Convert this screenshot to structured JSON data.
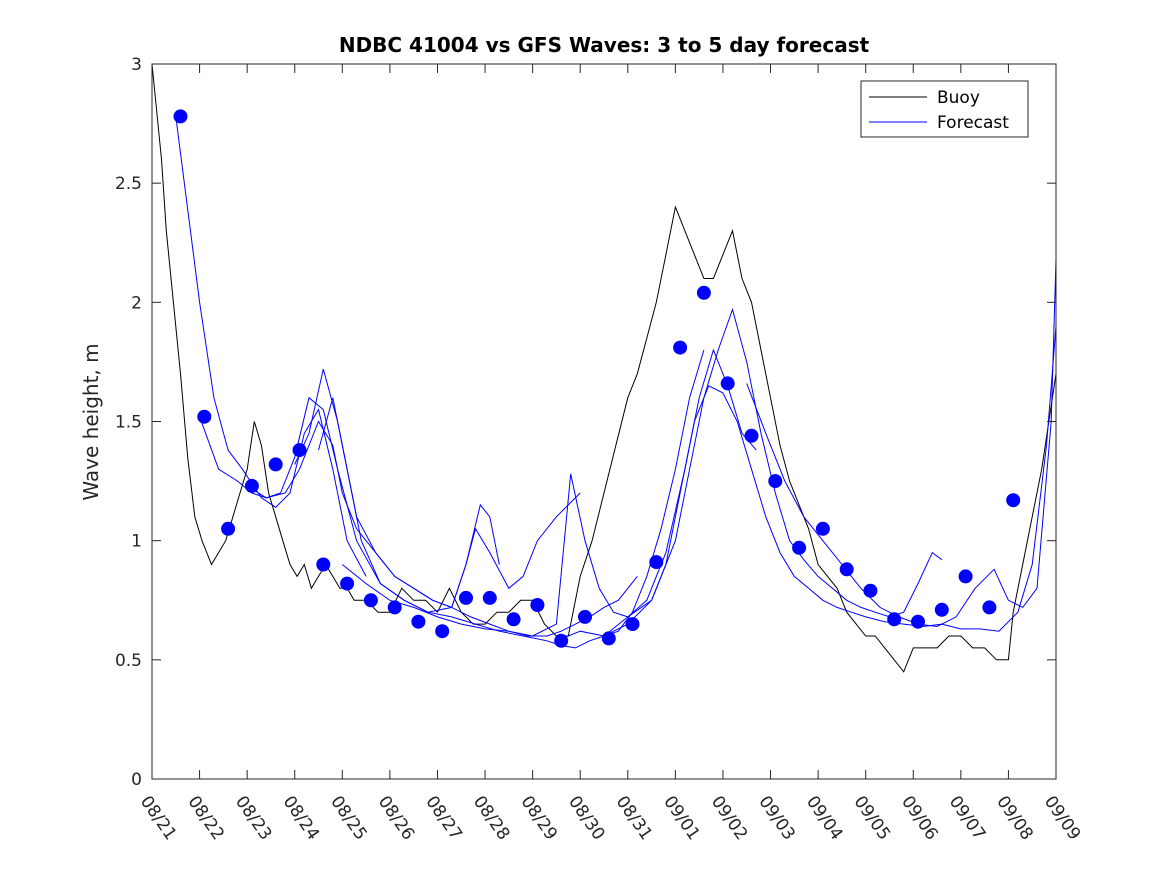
{
  "chart_data": {
    "type": "line",
    "title": "NDBC 41004 vs GFS Waves: 3 to 5 day forecast",
    "xlabel": "",
    "ylabel": "Wave height, m",
    "xlim": [
      0,
      19
    ],
    "ylim": [
      0,
      3
    ],
    "yticks": [
      0,
      0.5,
      1,
      1.5,
      2,
      2.5,
      3
    ],
    "ytick_labels": [
      "0",
      "0.5",
      "1",
      "1.5",
      "2",
      "2.5",
      "3"
    ],
    "xticks": [
      0,
      1,
      2,
      3,
      4,
      5,
      6,
      7,
      8,
      9,
      10,
      11,
      12,
      13,
      14,
      15,
      16,
      17,
      18,
      19
    ],
    "xtick_labels": [
      "08/21",
      "08/22",
      "08/23",
      "08/24",
      "08/25",
      "08/26",
      "08/27",
      "08/28",
      "08/29",
      "08/30",
      "08/31",
      "09/01",
      "09/02",
      "09/03",
      "09/04",
      "09/05",
      "09/06",
      "09/07",
      "09/08",
      "09/09"
    ],
    "x_units": "days since 08/21 00:00",
    "legend": {
      "location": "top-right",
      "entries": [
        {
          "label": "Buoy",
          "color": "#000000"
        },
        {
          "label": "Forecast",
          "color": "#0000ff"
        }
      ]
    },
    "series": [
      {
        "name": "Buoy",
        "color": "#000000",
        "x": [
          0.0,
          0.2,
          0.3,
          0.45,
          0.6,
          0.75,
          0.9,
          1.05,
          1.25,
          1.4,
          1.55,
          1.7,
          1.85,
          2.0,
          2.15,
          2.3,
          2.45,
          2.6,
          2.75,
          2.9,
          3.05,
          3.2,
          3.35,
          3.5,
          3.65,
          3.8,
          3.95,
          4.1,
          4.25,
          4.5,
          4.75,
          5.0,
          5.25,
          5.5,
          5.75,
          6.0,
          6.25,
          6.5,
          6.75,
          7.0,
          7.25,
          7.5,
          7.75,
          8.0,
          8.25,
          8.5,
          8.75,
          9.0,
          9.25,
          9.5,
          9.75,
          10.0,
          10.2,
          10.4,
          10.6,
          10.8,
          11.0,
          11.2,
          11.4,
          11.6,
          11.8,
          12.0,
          12.2,
          12.4,
          12.6,
          12.8,
          13.0,
          13.2,
          13.4,
          13.6,
          13.8,
          14.0,
          14.2,
          14.4,
          14.6,
          14.8,
          15.0,
          15.2,
          15.4,
          15.6,
          15.8,
          16.0,
          16.25,
          16.5,
          16.75,
          17.0,
          17.25,
          17.5,
          17.75,
          18.0,
          18.1,
          18.3,
          18.5,
          18.7,
          19.0
        ],
        "y": [
          3.0,
          2.6,
          2.3,
          2.0,
          1.7,
          1.35,
          1.1,
          1.0,
          0.9,
          0.95,
          1.0,
          1.1,
          1.2,
          1.3,
          1.5,
          1.4,
          1.2,
          1.1,
          1.0,
          0.9,
          0.85,
          0.9,
          0.8,
          0.85,
          0.9,
          0.85,
          0.8,
          0.8,
          0.75,
          0.75,
          0.7,
          0.7,
          0.8,
          0.75,
          0.75,
          0.7,
          0.8,
          0.7,
          0.65,
          0.65,
          0.7,
          0.7,
          0.75,
          0.75,
          0.65,
          0.6,
          0.6,
          0.85,
          1.0,
          1.2,
          1.4,
          1.6,
          1.7,
          1.85,
          2.0,
          2.2,
          2.4,
          2.3,
          2.2,
          2.1,
          2.1,
          2.2,
          2.3,
          2.1,
          2.0,
          1.8,
          1.6,
          1.4,
          1.25,
          1.15,
          1.05,
          0.9,
          0.85,
          0.8,
          0.7,
          0.65,
          0.6,
          0.6,
          0.55,
          0.5,
          0.45,
          0.55,
          0.55,
          0.55,
          0.6,
          0.6,
          0.55,
          0.55,
          0.5,
          0.5,
          0.7,
          0.9,
          1.1,
          1.3,
          1.7
        ]
      },
      {
        "name": "Forecast",
        "color": "#0000ff",
        "x": [
          0.5,
          1.0,
          1.3,
          1.6,
          1.9,
          2.3,
          2.6,
          2.9,
          3.2,
          3.5,
          3.8,
          4.1,
          4.5
        ],
        "y": [
          2.78,
          2.0,
          1.6,
          1.38,
          1.3,
          1.18,
          1.14,
          1.2,
          1.45,
          1.55,
          1.3,
          1.0,
          0.85
        ]
      },
      {
        "name": "Forecast",
        "color": "#0000ff",
        "x": [
          1.0,
          1.4,
          1.8,
          2.1,
          2.4,
          2.7,
          3.0,
          3.3,
          3.6,
          3.9,
          4.3,
          4.8,
          5.3,
          5.8,
          6.3,
          6.6,
          6.8,
          7.1,
          7.5,
          7.8,
          8.1,
          8.5,
          9.0
        ],
        "y": [
          1.52,
          1.3,
          1.25,
          1.2,
          1.18,
          1.2,
          1.35,
          1.6,
          1.55,
          1.3,
          1.0,
          0.82,
          0.75,
          0.7,
          0.72,
          0.9,
          1.05,
          0.95,
          0.8,
          0.85,
          1.0,
          1.1,
          1.2
        ]
      },
      {
        "name": "Forecast",
        "color": "#0000ff",
        "x": [
          2.0,
          2.4,
          2.8,
          3.1,
          3.5,
          3.8,
          4.0,
          4.3,
          4.7,
          5.1,
          5.5,
          5.9,
          6.3,
          6.6,
          6.9,
          7.1,
          7.3
        ],
        "y": [
          1.23,
          1.18,
          1.2,
          1.3,
          1.5,
          1.4,
          1.2,
          1.05,
          0.95,
          0.85,
          0.8,
          0.75,
          0.72,
          0.9,
          1.15,
          1.1,
          0.9
        ]
      },
      {
        "name": "Forecast",
        "color": "#0000ff",
        "x": [
          3.0,
          3.3,
          3.6,
          3.9,
          4.3,
          4.7,
          5.1,
          5.5,
          5.9,
          6.3,
          6.7,
          7.1,
          7.5,
          7.9,
          8.3,
          8.6,
          8.9,
          9.2,
          9.5,
          9.8,
          10.2
        ],
        "y": [
          1.32,
          1.45,
          1.72,
          1.5,
          1.1,
          0.95,
          0.85,
          0.8,
          0.75,
          0.72,
          0.68,
          0.65,
          0.62,
          0.6,
          0.6,
          0.62,
          0.65,
          0.68,
          0.72,
          0.75,
          0.85
        ]
      },
      {
        "name": "Forecast",
        "color": "#0000ff",
        "x": [
          3.5,
          3.8,
          4.1,
          4.4,
          4.8,
          5.3,
          5.8,
          6.3,
          6.8,
          7.3,
          7.8,
          8.3,
          8.6,
          8.9,
          9.2,
          9.5,
          9.8,
          10.1,
          10.4,
          10.7,
          11.0,
          11.3,
          11.6
        ],
        "y": [
          1.38,
          1.6,
          1.3,
          1.0,
          0.82,
          0.75,
          0.7,
          0.68,
          0.65,
          0.62,
          0.6,
          0.58,
          0.56,
          0.55,
          0.58,
          0.6,
          0.62,
          0.7,
          0.85,
          1.05,
          1.3,
          1.6,
          1.8
        ]
      },
      {
        "name": "Forecast",
        "color": "#0000ff",
        "x": [
          4.0,
          4.5,
          5.0,
          5.5,
          6.0,
          6.5,
          7.0,
          7.5,
          8.0,
          8.5,
          8.8,
          9.1,
          9.4,
          9.7,
          10.0,
          10.4,
          10.8,
          11.2,
          11.5,
          11.8,
          12.1,
          12.4,
          12.7
        ],
        "y": [
          0.9,
          0.82,
          0.75,
          0.72,
          0.68,
          0.65,
          0.63,
          0.62,
          0.6,
          0.65,
          1.28,
          1.0,
          0.8,
          0.7,
          0.68,
          0.75,
          0.95,
          1.3,
          1.6,
          1.8,
          1.65,
          1.45,
          1.38
        ]
      },
      {
        "name": "Forecast",
        "color": "#0000ff",
        "x": [
          8.5,
          9.0,
          9.5,
          10.0,
          10.5,
          11.0,
          11.3,
          11.6,
          11.9,
          12.2,
          12.5,
          12.8,
          13.1,
          13.4,
          13.7,
          14.0,
          14.3,
          14.6,
          14.9,
          15.2,
          15.5,
          15.8,
          16.1,
          16.4,
          16.6
        ],
        "y": [
          0.58,
          0.62,
          0.6,
          0.65,
          0.75,
          1.0,
          1.3,
          1.6,
          1.8,
          1.97,
          1.75,
          1.45,
          1.2,
          1.0,
          0.92,
          0.85,
          0.8,
          0.75,
          0.72,
          0.7,
          0.68,
          0.7,
          0.82,
          0.95,
          0.92
        ]
      },
      {
        "name": "Forecast",
        "color": "#0000ff",
        "x": [
          9.5,
          10.0,
          10.5,
          10.8,
          11.1,
          11.4,
          11.7,
          12.0,
          12.3,
          12.6,
          12.9,
          13.2,
          13.5,
          13.8,
          14.1,
          14.4,
          14.7,
          15.0,
          15.4,
          15.8,
          16.2,
          16.6,
          17.0,
          17.4,
          17.8,
          18.2,
          18.5,
          18.8,
          19.0
        ],
        "y": [
          0.6,
          0.68,
          0.75,
          0.9,
          1.2,
          1.5,
          1.65,
          1.62,
          1.5,
          1.3,
          1.1,
          0.95,
          0.85,
          0.8,
          0.75,
          0.72,
          0.7,
          0.68,
          0.66,
          0.65,
          0.64,
          0.65,
          0.63,
          0.63,
          0.62,
          0.7,
          0.9,
          1.4,
          1.9
        ]
      },
      {
        "name": "Forecast",
        "color": "#0000ff",
        "x": [
          12.5,
          12.9,
          13.3,
          13.7,
          14.1,
          14.5,
          14.9,
          15.3,
          15.7,
          16.1,
          16.5,
          16.9,
          17.3,
          17.7,
          18.0,
          18.3,
          18.6,
          18.9,
          19.0
        ],
        "y": [
          1.66,
          1.45,
          1.25,
          1.1,
          1.0,
          0.9,
          0.8,
          0.72,
          0.68,
          0.65,
          0.64,
          0.68,
          0.8,
          0.88,
          0.75,
          0.72,
          0.8,
          1.5,
          2.18
        ]
      }
    ],
    "markers": {
      "name": "Forecast points",
      "color": "#0000ff",
      "x": [
        0.6,
        1.1,
        1.6,
        2.1,
        2.6,
        3.1,
        3.6,
        4.1,
        4.6,
        5.1,
        5.6,
        6.1,
        6.6,
        7.1,
        7.6,
        8.1,
        8.6,
        9.1,
        9.6,
        10.1,
        10.6,
        11.1,
        11.6,
        12.1,
        12.6,
        13.1,
        13.6,
        14.1,
        14.6,
        15.1,
        15.6,
        16.1,
        16.6,
        17.1,
        17.6,
        18.1
      ],
      "y": [
        2.78,
        1.52,
        1.05,
        1.23,
        1.32,
        1.38,
        0.9,
        0.82,
        0.75,
        0.72,
        0.66,
        0.62,
        0.76,
        0.76,
        0.67,
        0.73,
        0.58,
        0.68,
        0.59,
        0.65,
        0.91,
        1.81,
        2.04,
        1.66,
        1.44,
        1.25,
        0.97,
        1.05,
        0.88,
        0.79,
        0.67,
        0.66,
        0.71,
        0.85,
        0.72,
        1.17
      ]
    }
  }
}
